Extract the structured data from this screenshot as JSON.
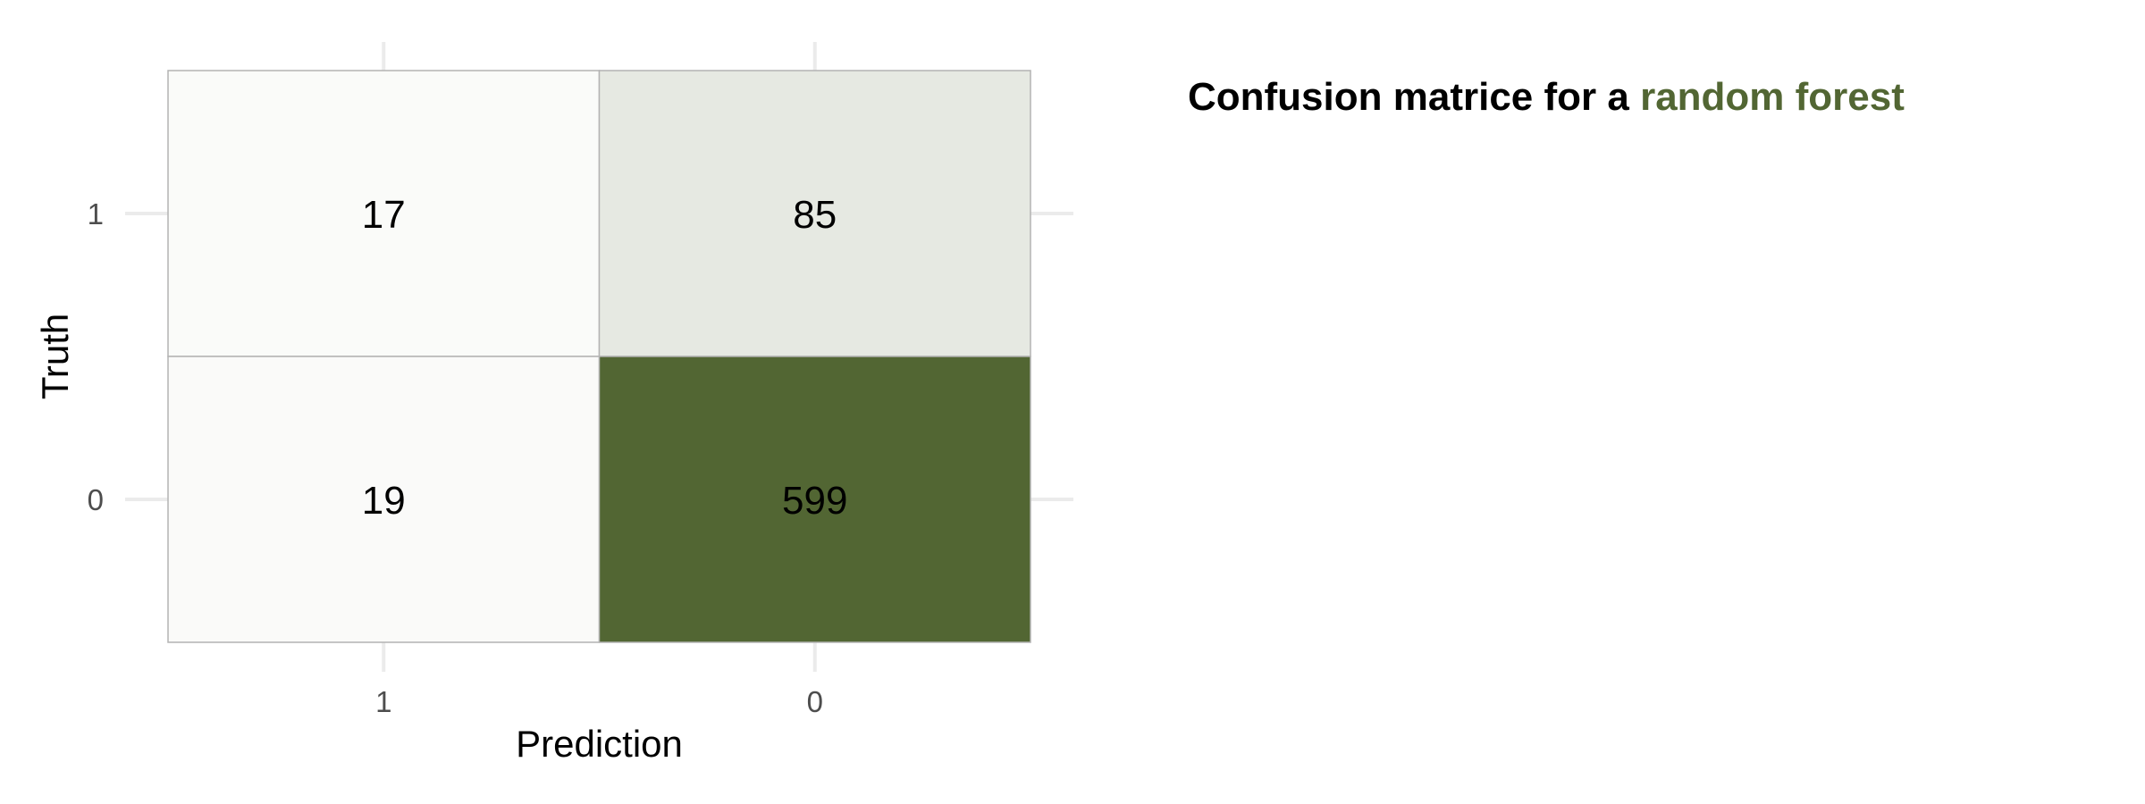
{
  "chart_data": {
    "type": "heatmap",
    "title_prefix": "Confusion matrice for a ",
    "title_highlight": "random forest",
    "xlabel": "Prediction",
    "ylabel": "Truth",
    "x_categories": [
      "1",
      "0"
    ],
    "y_categories": [
      "1",
      "0"
    ],
    "cells": [
      {
        "truth": "1",
        "prediction": "1",
        "value": 17
      },
      {
        "truth": "1",
        "prediction": "0",
        "value": 85
      },
      {
        "truth": "0",
        "prediction": "1",
        "value": 19
      },
      {
        "truth": "0",
        "prediction": "0",
        "value": 599
      }
    ],
    "value_range": [
      0,
      599
    ],
    "legend": "none",
    "grid": true
  },
  "colors": {
    "low": "#ffffff",
    "high": "#526633",
    "highlight_text": "#526633",
    "text": "#000000",
    "tick_label": "#4d4d4d",
    "grid": "#ebebeb",
    "cell_border": "#b3b3b3"
  }
}
